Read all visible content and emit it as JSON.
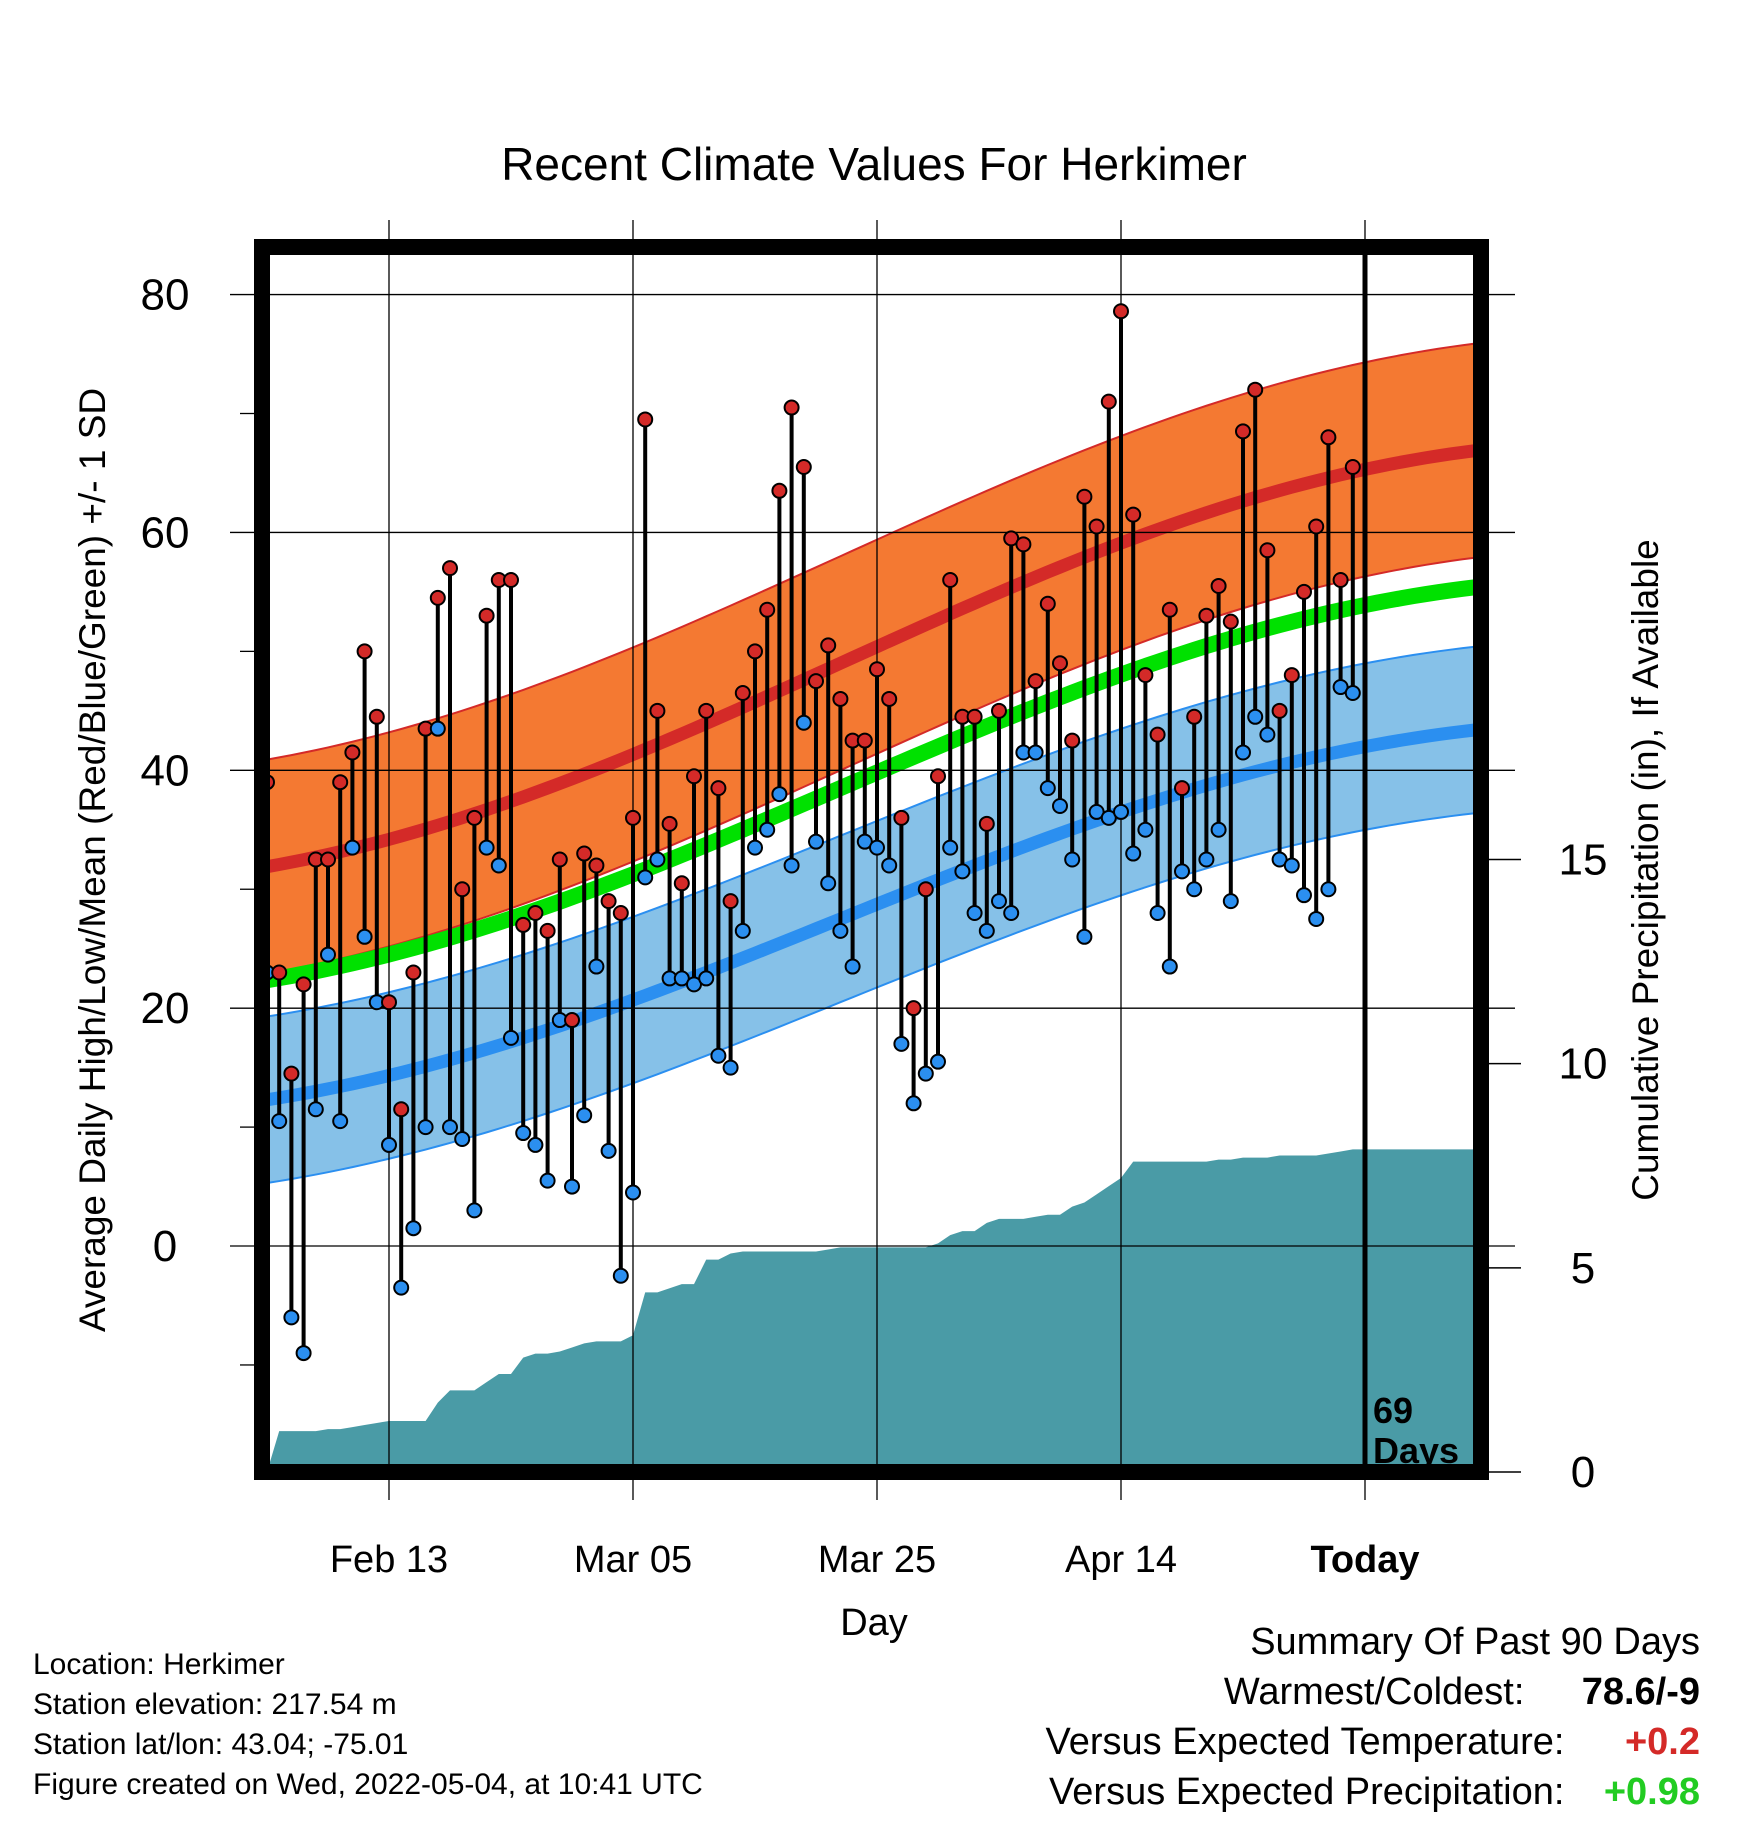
{
  "chart_data": {
    "type": "line",
    "title": "Recent Climate Values For Herkimer",
    "xlabel": "Day",
    "ylabel": "Average Daily High/Low/Mean (Red/Blue/Green) +/- 1 SD",
    "y2label": "Cumulative Precipitation (in), If Available",
    "x_tick_labels": [
      "Feb 13",
      "Mar 05",
      "Mar 25",
      "Apr 14",
      "Today"
    ],
    "x_tick_days": [
      10,
      30,
      50,
      70,
      90
    ],
    "xlim_days": [
      0,
      100
    ],
    "ylim": [
      -19,
      84
    ],
    "y_ticks": [
      0,
      20,
      40,
      60,
      80
    ],
    "y2_ticks": [
      0,
      5,
      10,
      15
    ],
    "grid": true,
    "today_label": "69\nDays",
    "normal_high": {
      "mean_start": 31,
      "mean_end": 67,
      "sd": 9
    },
    "normal_low": {
      "mean_start": 11.5,
      "mean_end": 43.5,
      "sd": 7
    },
    "normal_mean": {
      "start": 21.5,
      "end": 55.5
    },
    "series": [
      {
        "name": "High",
        "values": [
          39,
          23,
          14.5,
          22,
          32.5,
          32.5,
          39,
          41.5,
          50,
          44.5,
          20.5,
          11.5,
          23,
          43.5,
          54.5,
          57,
          30,
          36,
          53,
          56,
          56,
          27,
          28,
          26.5,
          32.5,
          19,
          33,
          32,
          29,
          28,
          36,
          69.5,
          45,
          35.5,
          30.5,
          39.5,
          45,
          38.5,
          29,
          46.5,
          50,
          53.5,
          63.5,
          70.5,
          65.5,
          47.5,
          50.5,
          46,
          42.5,
          42.5,
          48.5,
          46,
          36,
          20,
          30,
          39.5,
          56,
          44.5,
          44.5,
          35.5,
          45,
          59.5,
          59,
          47.5,
          54,
          49,
          42.5,
          63,
          60.5,
          71,
          78.6,
          61.5,
          48,
          43,
          53.5,
          38.5,
          44.5,
          53,
          55.5,
          52.5,
          68.5,
          72,
          58.5,
          45,
          48,
          55,
          60.5,
          68,
          56,
          65.5
        ]
      },
      {
        "name": "Low",
        "values": [
          23,
          10.5,
          -6,
          -9,
          11.5,
          24.5,
          10.5,
          33.5,
          26,
          20.5,
          8.5,
          -3.5,
          1.5,
          10,
          43.5,
          10,
          9,
          3,
          33.5,
          32,
          17.5,
          9.5,
          8.5,
          5.5,
          19,
          5,
          11,
          23.5,
          8,
          -2.5,
          4.5,
          31,
          32.5,
          22.5,
          22.5,
          22,
          22.5,
          16,
          15,
          26.5,
          33.5,
          35,
          38,
          32,
          44,
          34,
          30.5,
          26.5,
          23.5,
          34,
          33.5,
          32,
          17,
          12,
          14.5,
          15.5,
          33.5,
          31.5,
          28,
          26.5,
          29,
          28,
          41.5,
          41.5,
          38.5,
          37,
          32.5,
          26,
          36.5,
          36,
          36.5,
          33,
          35,
          28,
          23.5,
          31.5,
          30,
          32.5,
          35,
          29,
          41.5,
          44.5,
          43,
          32.5,
          32,
          29.5,
          27.5,
          30,
          47,
          46.5
        ]
      }
    ],
    "precipitation": {
      "name": "Cumulative Precipitation",
      "values": [
        0,
        1,
        1,
        1,
        1,
        1.05,
        1.05,
        1.1,
        1.15,
        1.2,
        1.25,
        1.25,
        1.25,
        1.25,
        1.7,
        2,
        2,
        2,
        2.2,
        2.4,
        2.4,
        2.8,
        2.9,
        2.9,
        2.95,
        3.05,
        3.15,
        3.2,
        3.2,
        3.2,
        3.35,
        4.4,
        4.4,
        4.5,
        4.6,
        4.6,
        5.2,
        5.2,
        5.35,
        5.4,
        5.4,
        5.4,
        5.4,
        5.4,
        5.4,
        5.4,
        5.45,
        5.5,
        5.5,
        5.5,
        5.5,
        5.5,
        5.5,
        5.5,
        5.5,
        5.6,
        5.8,
        5.9,
        5.9,
        6.1,
        6.2,
        6.2,
        6.2,
        6.25,
        6.3,
        6.3,
        6.5,
        6.6,
        6.8,
        7,
        7.2,
        7.6,
        7.6,
        7.6,
        7.6,
        7.6,
        7.6,
        7.6,
        7.65,
        7.65,
        7.7,
        7.7,
        7.7,
        7.75,
        7.75,
        7.75,
        7.75,
        7.8,
        7.85,
        7.9,
        7.9,
        7.9,
        7.9,
        7.9,
        7.9,
        7.9,
        7.9,
        7.9,
        7.9,
        7.9,
        7.9
      ],
      "ylim": [
        0,
        30
      ]
    },
    "colors": {
      "high_band": "#f47932",
      "high_line": "#d42a28",
      "low_band": "#86c1e8",
      "low_line": "#2b8ff0",
      "mean_line": "#00e100",
      "overlap": "#a3232b",
      "precip": "#4a9ba6",
      "high_dot": "#d42a28",
      "low_dot": "#2b8ff0"
    }
  },
  "info": {
    "location": "Location: Herkimer",
    "elevation": "Station elevation: 217.54 m",
    "latlon": "Station lat/lon: 43.04; -75.01",
    "created": "Figure created on Wed, 2022-05-04, at 10:41 UTC"
  },
  "summary": {
    "title": "Summary Of Past 90 Days",
    "warm_cold_label": "Warmest/Coldest:",
    "warm_cold_value": "78.6/-9",
    "temp_label": "Versus Expected Temperature:",
    "temp_value": "+0.2",
    "temp_color": "#d42a28",
    "precip_label": "Versus Expected Precipitation:",
    "precip_value": "+0.98",
    "precip_color": "#22cc22"
  }
}
